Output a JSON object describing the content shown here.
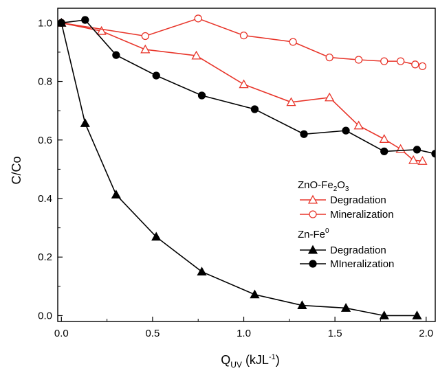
{
  "chart_data": {
    "type": "line",
    "xlabel": "Q_UV (kJL^-1)",
    "ylabel": "C/Co",
    "xlabel_parts": {
      "main": "Q",
      "sub": "UV",
      "unit_open": " (kJL",
      "sup": "-1",
      "unit_close": ")"
    },
    "xlim": [
      -0.02,
      2.05
    ],
    "ylim": [
      -0.02,
      1.05
    ],
    "xticks": [
      0.0,
      0.5,
      1.0,
      1.5,
      2.0
    ],
    "xtick_labels": [
      "0.0",
      "0.5",
      "1.0",
      "1.5",
      "2.0"
    ],
    "yticks": [
      0.0,
      0.2,
      0.4,
      0.6,
      0.8,
      1.0
    ],
    "ytick_labels": [
      "0.0",
      "0.2",
      "0.4",
      "0.6",
      "0.8",
      "1.0"
    ],
    "legend_position": "right",
    "legend_groups": [
      {
        "title_main": "ZnO-Fe",
        "title_sub1": "2",
        "title_mid": "O",
        "title_sub2": "3"
      },
      {
        "title_main": "Zn-Fe",
        "title_sup": "0"
      }
    ],
    "series": [
      {
        "name": "Degradation",
        "group": "ZnO-Fe2O3",
        "color": "#e8352a",
        "marker": "triangle-open",
        "x": [
          0.0,
          0.22,
          0.46,
          0.74,
          1.0,
          1.26,
          1.47,
          1.63,
          1.77,
          1.86,
          1.93,
          1.98
        ],
        "y": [
          1.0,
          0.972,
          0.909,
          0.888,
          0.79,
          0.729,
          0.745,
          0.649,
          0.603,
          0.569,
          0.531,
          0.528
        ]
      },
      {
        "name": "Mineralization",
        "group": "ZnO-Fe2O3",
        "color": "#e8352a",
        "marker": "circle-open",
        "x": [
          0.0,
          0.46,
          0.75,
          1.0,
          1.27,
          1.47,
          1.63,
          1.77,
          1.86,
          1.94,
          1.98
        ],
        "y": [
          1.0,
          0.955,
          1.015,
          0.957,
          0.935,
          0.882,
          0.874,
          0.869,
          0.869,
          0.858,
          0.852
        ]
      },
      {
        "name": "Degradation",
        "group": "Zn-Fe0",
        "color": "#000000",
        "marker": "triangle-filled",
        "x": [
          0.0,
          0.13,
          0.3,
          0.52,
          0.77,
          1.06,
          1.32,
          1.56,
          1.77,
          1.95
        ],
        "y": [
          1.0,
          0.657,
          0.413,
          0.269,
          0.15,
          0.072,
          0.035,
          0.026,
          0.0,
          0.0
        ]
      },
      {
        "name": "MIneralization",
        "group": "Zn-Fe0",
        "color": "#000000",
        "marker": "circle-filled",
        "x": [
          0.0,
          0.13,
          0.3,
          0.52,
          0.77,
          1.06,
          1.33,
          1.56,
          1.77,
          1.95,
          2.05
        ],
        "y": [
          1.0,
          1.01,
          0.89,
          0.82,
          0.752,
          0.705,
          0.62,
          0.632,
          0.561,
          0.567,
          0.553
        ]
      }
    ]
  }
}
